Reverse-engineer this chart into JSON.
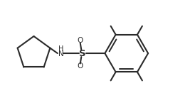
{
  "bg_color": "#ffffff",
  "line_color": "#2a2a2a",
  "line_width": 1.5,
  "fig_width": 2.67,
  "fig_height": 1.45,
  "dpi": 100,
  "xlim": [
    0.0,
    10.5
  ],
  "ylim": [
    0.8,
    5.8
  ]
}
